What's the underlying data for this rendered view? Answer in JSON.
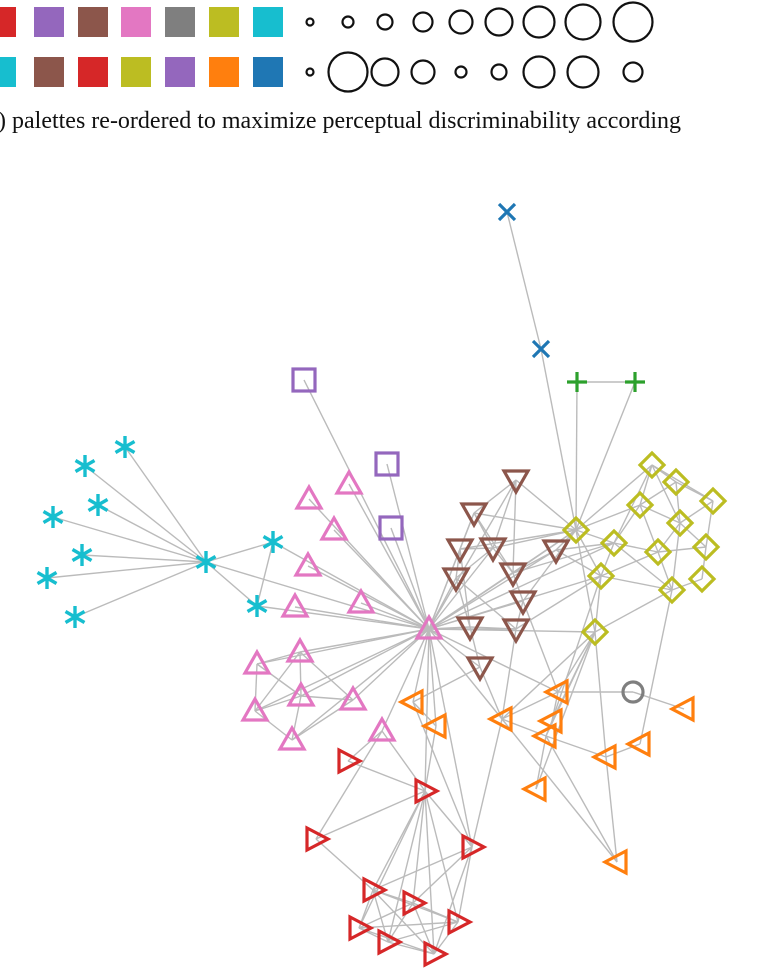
{
  "caption": ") palettes re-ordered to maximize perceptual discriminability according",
  "palettes": {
    "color_row_1": [
      "#d62728",
      "#9467bd",
      "#8c564b",
      "#e377c2",
      "#7f7f7f",
      "#bcbd22",
      "#17becf"
    ],
    "color_row_2": [
      "#17becf",
      "#8c564b",
      "#d62728",
      "#bcbd22",
      "#9467bd",
      "#ff7f0e",
      "#1f77b4"
    ],
    "size_row_1_relative": [
      1,
      2,
      3,
      4,
      5,
      6,
      7,
      8,
      9
    ],
    "size_row_2_relative": [
      1,
      9,
      6,
      5,
      2,
      3,
      7,
      7,
      4
    ]
  },
  "graph": {
    "edge_color": "#bbbbbb",
    "node_groups": [
      {
        "name": "blue-cross",
        "shape": "cross",
        "color": "#1f77b4"
      },
      {
        "name": "green-plus",
        "shape": "plus",
        "color": "#2ca02c"
      },
      {
        "name": "purple-square",
        "shape": "square",
        "color": "#9467bd"
      },
      {
        "name": "cyan-asterisk",
        "shape": "asterisk",
        "color": "#17becf"
      },
      {
        "name": "pink-triangle-up",
        "shape": "triangle-up",
        "color": "#e377c2"
      },
      {
        "name": "brown-triangle-down",
        "shape": "triangle-down",
        "color": "#8c564b"
      },
      {
        "name": "olive-diamond",
        "shape": "diamond",
        "color": "#bcbd22"
      },
      {
        "name": "orange-triangle-left",
        "shape": "triangle-left",
        "color": "#ff7f0e"
      },
      {
        "name": "red-triangle-right",
        "shape": "triangle-right",
        "color": "#d62728"
      },
      {
        "name": "gray-circle",
        "shape": "circle",
        "color": "#7f7f7f"
      }
    ]
  }
}
